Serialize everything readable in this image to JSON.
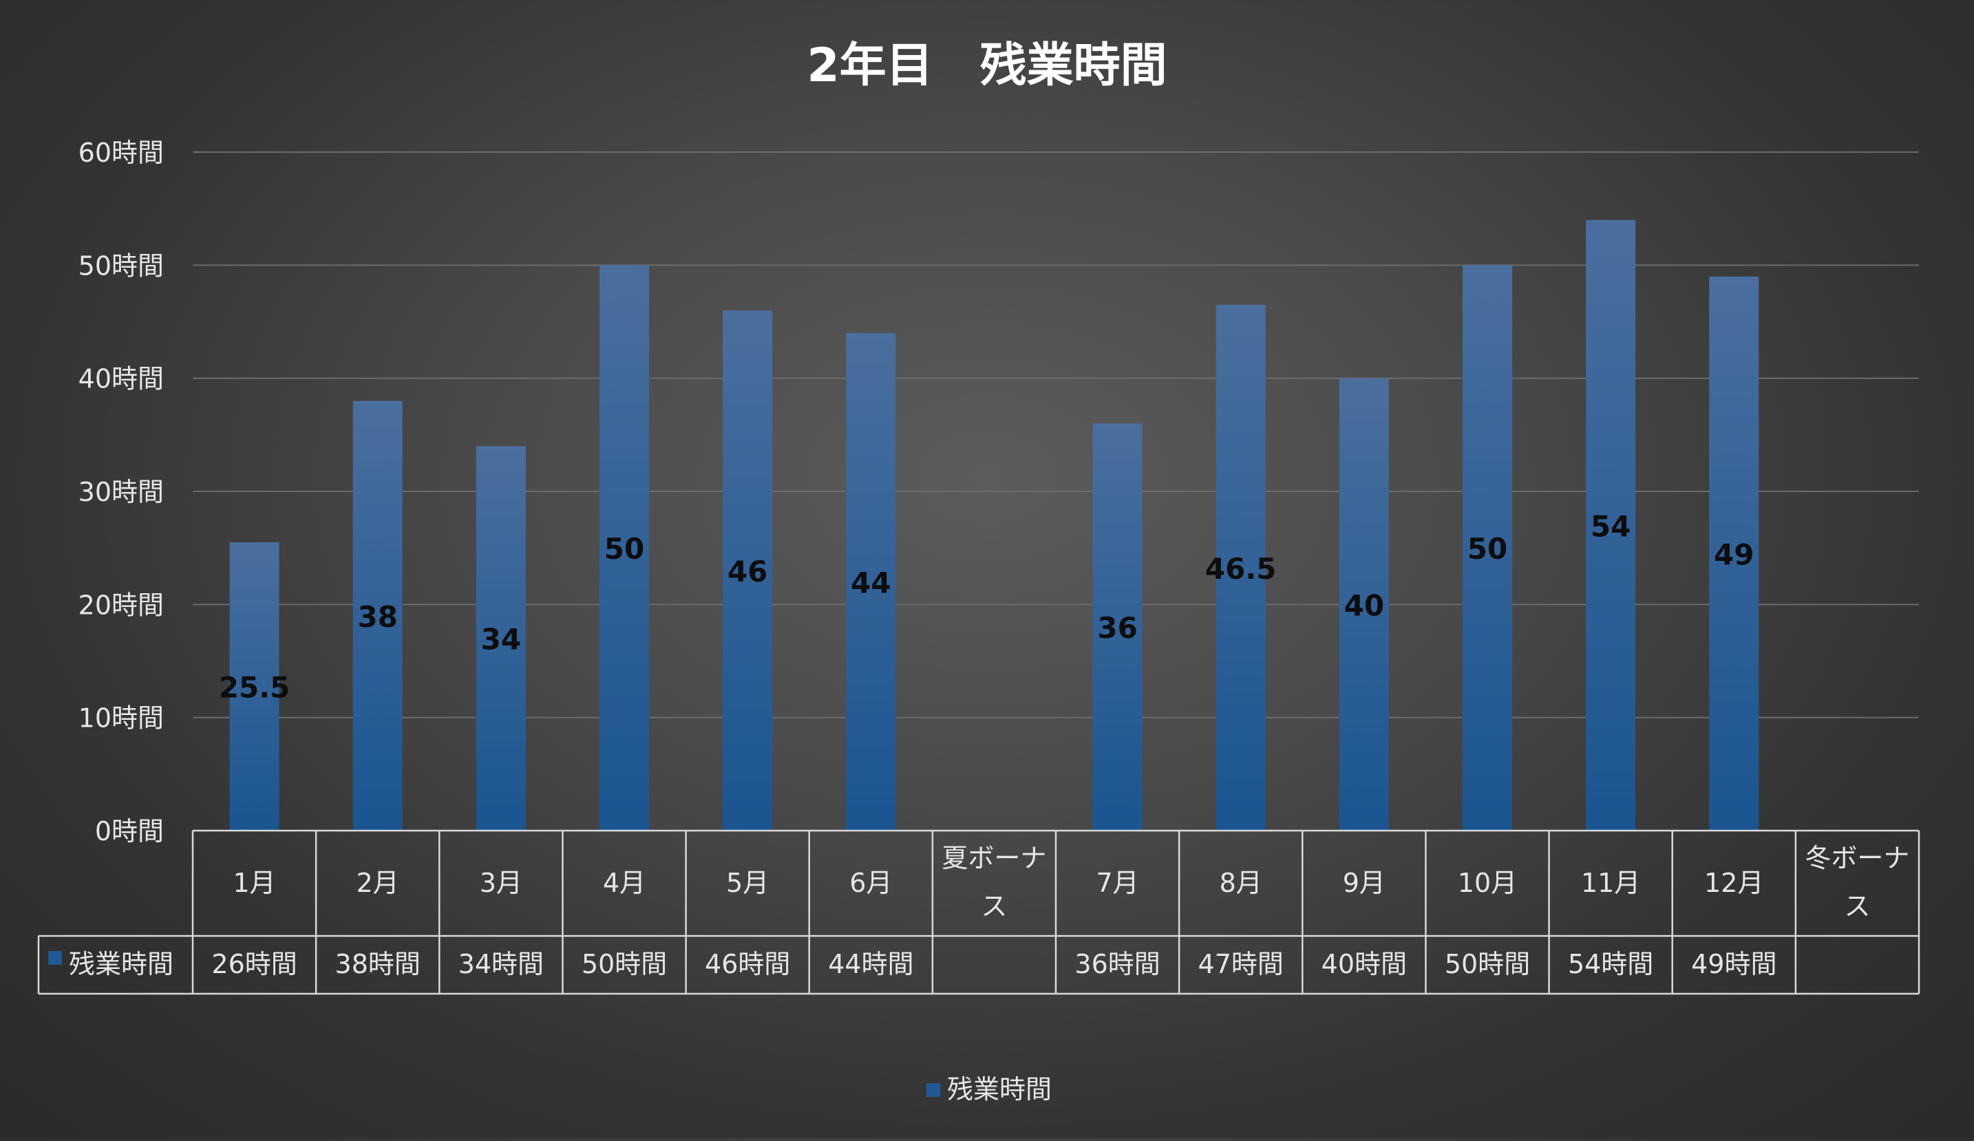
{
  "chart_data": {
    "type": "bar",
    "title": "2年目　残業時間",
    "xlabel": "",
    "ylabel": "",
    "ylim": [
      0,
      60
    ],
    "yticks": [
      0,
      10,
      20,
      30,
      40,
      50,
      60
    ],
    "y_tick_format": "{v}時間",
    "grid": true,
    "legend_position": "bottom",
    "categories": [
      "1月",
      "2月",
      "3月",
      "4月",
      "5月",
      "6月",
      "夏ボーナス",
      "7月",
      "8月",
      "9月",
      "10月",
      "11月",
      "12月",
      "冬ボーナス"
    ],
    "series": [
      {
        "name": "残業時間",
        "values": [
          25.5,
          38,
          34,
          50,
          46,
          44,
          null,
          36,
          46.5,
          40,
          50,
          54,
          49,
          null
        ],
        "data_labels": [
          "25.5",
          "38",
          "34",
          "50",
          "46",
          "44",
          "",
          "36",
          "46.5",
          "40",
          "50",
          "54",
          "49",
          ""
        ],
        "table_values": [
          "26時間",
          "38時間",
          "34時間",
          "50時間",
          "46時間",
          "44時間",
          "",
          "36時間",
          "47時間",
          "40時間",
          "50時間",
          "54時間",
          "49時間",
          ""
        ],
        "color_top": "#4a6f9e",
        "color_bottom": "#1a5591"
      }
    ],
    "colors": {
      "gridline": "#6b6b6b",
      "axis_line": "#d9d9d9",
      "text": "#e6e6e6",
      "title": "#ffffff",
      "data_label": "#0d0d0d",
      "legend_key": "#1f5a96"
    }
  }
}
